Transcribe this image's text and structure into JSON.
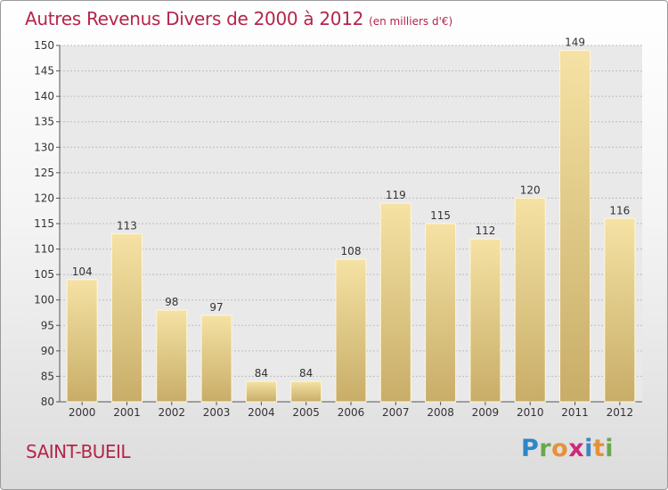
{
  "title": "Autres Revenus Divers de 2000 à 2012",
  "subtitle": "(en milliers d'€)",
  "commune": "SAINT-BUEIL",
  "logo": {
    "letters": [
      "P",
      "r",
      "o",
      "x",
      "i",
      "t",
      "i"
    ],
    "colors": [
      "#2e86c8",
      "#6aa84f",
      "#e69138",
      "#cc2a7a",
      "#3d85c6",
      "#e69138",
      "#6aa84f"
    ]
  },
  "colors": {
    "bar_light": "#f5e2a4",
    "bar_dark": "#c8ad68",
    "title": "#b5254a",
    "grid": "#bdbdbd"
  },
  "chart_data": {
    "type": "bar",
    "categories": [
      "2000",
      "2001",
      "2002",
      "2003",
      "2004",
      "2005",
      "2006",
      "2007",
      "2008",
      "2009",
      "2010",
      "2011",
      "2012"
    ],
    "values": [
      104,
      113,
      98,
      97,
      84,
      84,
      108,
      119,
      115,
      112,
      120,
      149,
      116
    ],
    "ylim": [
      80,
      150
    ],
    "yticks": [
      80,
      85,
      90,
      95,
      100,
      105,
      110,
      115,
      120,
      125,
      130,
      135,
      140,
      145,
      150
    ],
    "grid": true,
    "data_labels": true
  }
}
